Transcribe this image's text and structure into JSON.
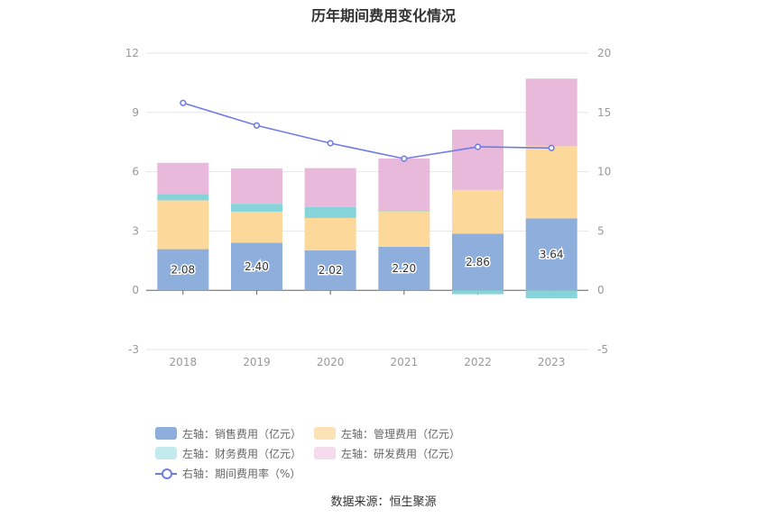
{
  "title": "历年期间费用变化情况",
  "source": "数据来源：恒生聚源",
  "colors": {
    "sales": "#8eaedb",
    "admin": "#fdd89b",
    "finance": "#86d3d9",
    "rnd": "#e8b9da",
    "rate_line": "#6f7ce6",
    "legend_sales": "#8eaedb",
    "legend_admin": "#fde2b8",
    "legend_finance": "#c3ebee",
    "legend_rnd": "#f4daec"
  },
  "legend": [
    {
      "label": "左轴：销售费用（亿元）",
      "key": "sales"
    },
    {
      "label": "左轴：管理费用（亿元）",
      "key": "admin"
    },
    {
      "label": "左轴：财务费用（亿元）",
      "key": "finance"
    },
    {
      "label": "左轴：研发费用（亿元）",
      "key": "rnd"
    },
    {
      "label": "右轴：期间费用率（%）",
      "key": "rate_line"
    }
  ],
  "chart_data": {
    "type": "bar",
    "stacked": true,
    "categories": [
      "2018",
      "2019",
      "2020",
      "2021",
      "2022",
      "2023"
    ],
    "series": [
      {
        "name": "左轴：销售费用（亿元）",
        "key": "sales",
        "axis": "left",
        "values": [
          2.08,
          2.4,
          2.02,
          2.2,
          2.86,
          3.64
        ],
        "labels": [
          "2.08",
          "2.40",
          "2.02",
          "2.20",
          "2.86",
          "3.64"
        ]
      },
      {
        "name": "左轴：管理费用（亿元）",
        "key": "admin",
        "axis": "left",
        "values": [
          2.47,
          1.58,
          1.64,
          1.8,
          2.22,
          3.65
        ]
      },
      {
        "name": "左轴：财务费用（亿元）",
        "key": "finance",
        "axis": "left",
        "values": [
          0.33,
          0.4,
          0.55,
          0.05,
          -0.2,
          -0.4
        ]
      },
      {
        "name": "左轴：研发费用（亿元）",
        "key": "rnd",
        "axis": "left",
        "values": [
          1.57,
          1.78,
          1.97,
          2.62,
          3.05,
          3.42
        ]
      },
      {
        "name": "右轴：期间费用率（%）",
        "key": "rate_line",
        "axis": "right",
        "type": "line",
        "values": [
          15.8,
          13.9,
          12.4,
          11.1,
          12.1,
          12.0
        ]
      }
    ],
    "left_axis": {
      "ylim": [
        -3,
        12
      ],
      "ticks": [
        "-3",
        "0",
        "3",
        "6",
        "9",
        "12"
      ]
    },
    "right_axis": {
      "ylim": [
        -5,
        20
      ],
      "ticks": [
        "-5",
        "0",
        "5",
        "10",
        "15",
        "20"
      ]
    },
    "grid": true,
    "legend_position": "bottom"
  }
}
